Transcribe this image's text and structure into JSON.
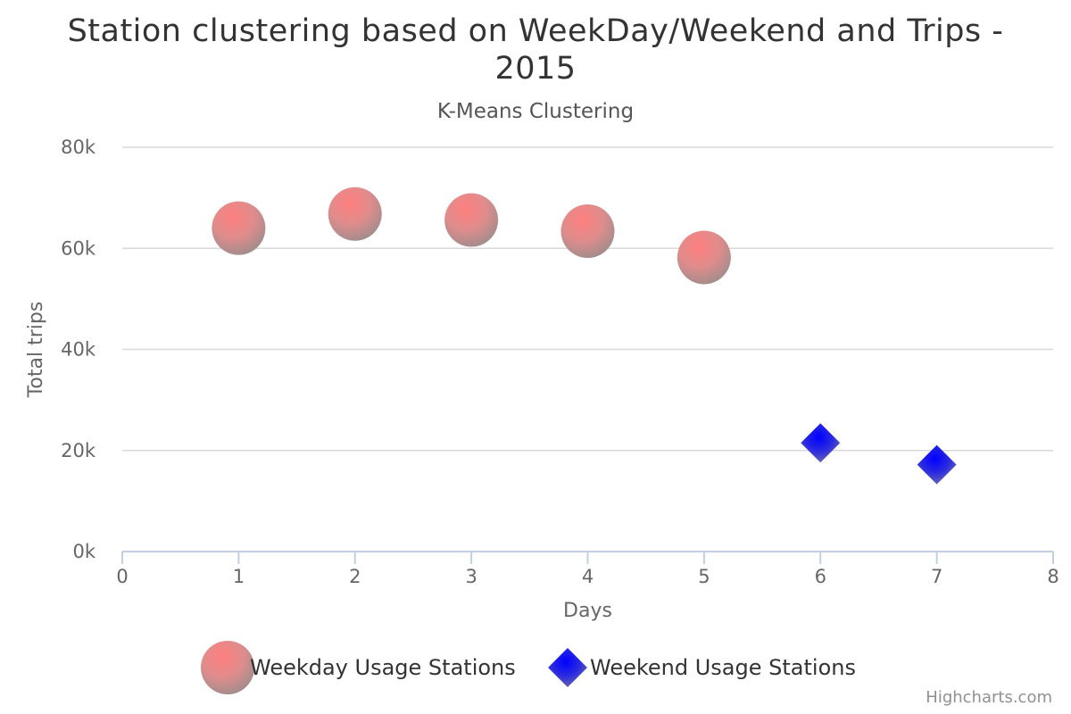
{
  "chart_data": {
    "type": "scatter",
    "title": "Station clustering based on WeekDay/Weekend and Trips - 2015",
    "subtitle": "K-Means Clustering",
    "xlabel": "Days",
    "ylabel": "Total trips",
    "xlim": [
      0,
      8
    ],
    "ylim": [
      0,
      80000
    ],
    "x_ticks": [
      "0",
      "1",
      "2",
      "3",
      "4",
      "5",
      "6",
      "7",
      "8"
    ],
    "y_ticks": [
      "0k",
      "20k",
      "40k",
      "60k",
      "80k"
    ],
    "grid": "horizontal",
    "legend_position": "bottom",
    "series": [
      {
        "name": "Weekday Usage Stations",
        "marker": "circle",
        "color": "#ff7f7f",
        "color_shade": "#8c8c8c",
        "points": [
          {
            "x": 1,
            "y": 64000
          },
          {
            "x": 2,
            "y": 66800
          },
          {
            "x": 3,
            "y": 65600
          },
          {
            "x": 4,
            "y": 63400
          },
          {
            "x": 5,
            "y": 58200
          }
        ]
      },
      {
        "name": "Weekend Usage Stations",
        "marker": "diamond",
        "color": "#0000ff",
        "color_shade": "#8c8c8c",
        "points": [
          {
            "x": 6,
            "y": 21500
          },
          {
            "x": 7,
            "y": 17200
          }
        ]
      }
    ]
  },
  "credits": "Highcharts.com"
}
